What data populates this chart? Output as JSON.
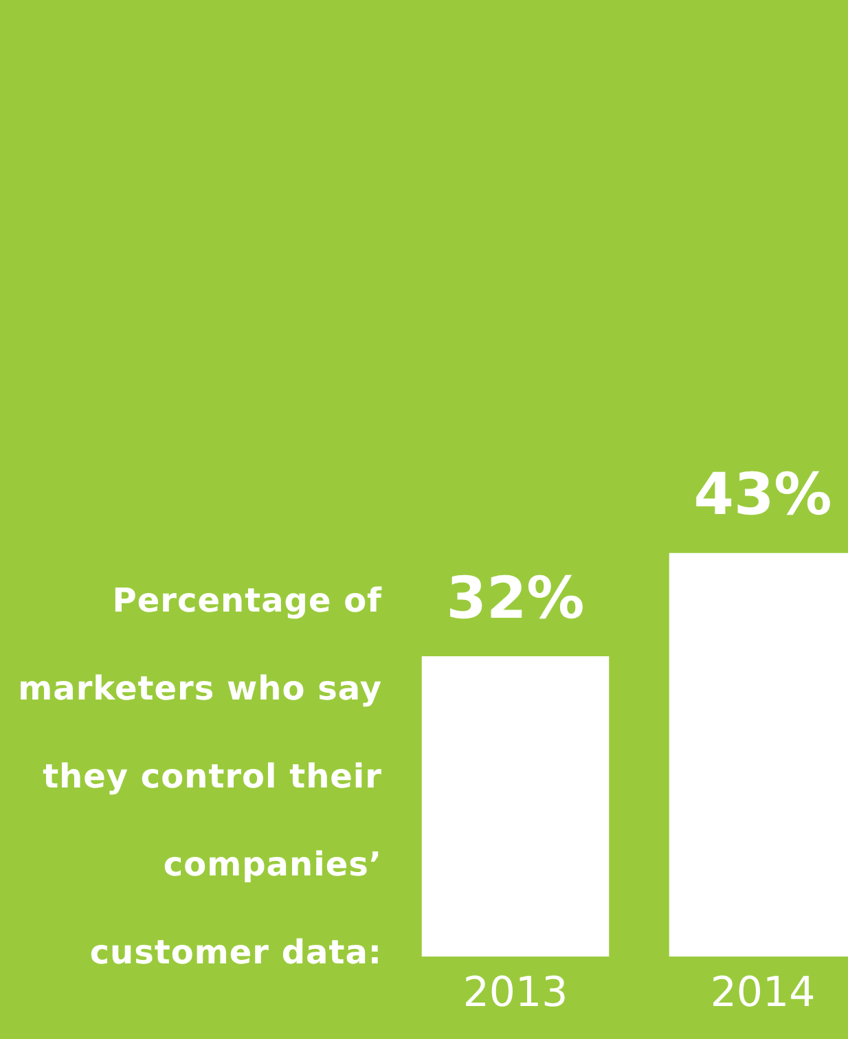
{
  "chart_data": {
    "type": "bar",
    "title": "Percentage of marketers who say they control their companies’ customer data:",
    "categories": [
      "2013",
      "2014"
    ],
    "values": [
      32,
      43
    ],
    "value_labels": [
      "32%",
      "43%"
    ],
    "color": "#ffffff",
    "grid": false,
    "legend": false
  }
}
